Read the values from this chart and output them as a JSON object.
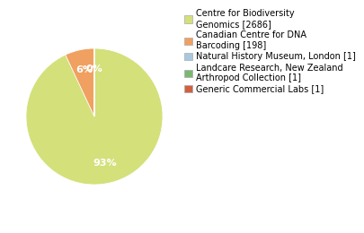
{
  "labels": [
    "Centre for Biodiversity\nGenomics [2686]",
    "Canadian Centre for DNA\nBarcoding [198]",
    "Natural History Museum, London [1]",
    "Landcare Research, New Zealand\nArthropod Collection [1]",
    "Generic Commercial Labs [1]"
  ],
  "values": [
    2686,
    198,
    1,
    1,
    1
  ],
  "colors": [
    "#d4e07a",
    "#f0a060",
    "#a8c8e0",
    "#7ab870",
    "#d06040"
  ],
  "background_color": "#ffffff",
  "legend_fontsize": 7.0,
  "autopct_fontsize": 8.0
}
